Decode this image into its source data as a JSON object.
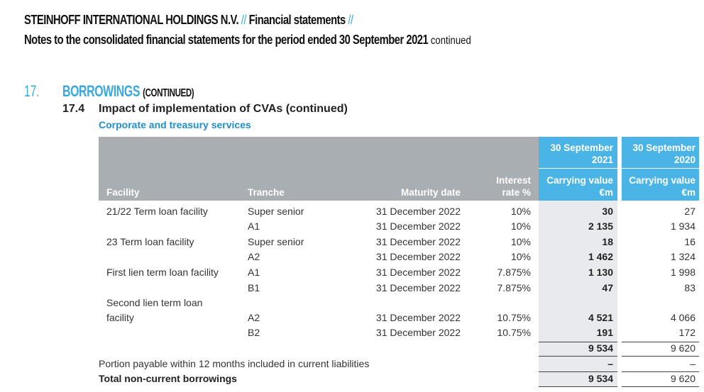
{
  "header": {
    "company": "STEINHOFF INTERNATIONAL HOLDINGS N.V.",
    "slash": "//",
    "doc": "Financial statements",
    "notes_title": "Notes to the consolidated financial statements for the period ended 30 September 2021",
    "continued": "continued"
  },
  "section": {
    "number": "17.",
    "title": "BORROWINGS",
    "title_suffix": "(CONTINUED)",
    "sub_number": "17.4",
    "sub_title": "Impact of implementation of CVAs (continued)",
    "sub_sub_title": "Corporate and treasury services"
  },
  "table": {
    "headers": {
      "facility": "Facility",
      "tranche": "Tranche",
      "maturity": "Maturity date",
      "rate_l1": "Interest",
      "rate_l2": "rate %",
      "col2021_l1": "30 September",
      "col2021_l2": "2021",
      "col2020_l1": "30 September",
      "col2020_l2": "2020",
      "cv_l1": "Carrying value",
      "cv_l2": "€m"
    },
    "rows": [
      {
        "facility": "21/22 Term loan facility",
        "tranche": "Super senior",
        "maturity": "31 December 2022",
        "rate": "10%",
        "v2021": "30",
        "v2020": "27"
      },
      {
        "facility": "",
        "tranche": "A1",
        "maturity": "31 December 2022",
        "rate": "10%",
        "v2021": "2 135",
        "v2020": "1 934"
      },
      {
        "facility": "23 Term loan facility",
        "tranche": "Super senior",
        "maturity": "31 December 2022",
        "rate": "10%",
        "v2021": "18",
        "v2020": "16"
      },
      {
        "facility": "",
        "tranche": "A2",
        "maturity": "31 December 2022",
        "rate": "10%",
        "v2021": "1 462",
        "v2020": "1 324"
      },
      {
        "facility": "First lien term loan facility",
        "tranche": "A1",
        "maturity": "31 December 2022",
        "rate": "7.875%",
        "v2021": "1 130",
        "v2020": "1 998"
      },
      {
        "facility": "",
        "tranche": "B1",
        "maturity": "31 December 2022",
        "rate": "7.875%",
        "v2021": "47",
        "v2020": "83"
      },
      {
        "facility": "Second lien term loan",
        "tranche": "",
        "maturity": "",
        "rate": "",
        "v2021": "",
        "v2020": ""
      },
      {
        "facility": "facility",
        "tranche": "A2",
        "maturity": "31 December 2022",
        "rate": "10.75%",
        "v2021": "4 521",
        "v2020": "4 066"
      },
      {
        "facility": "",
        "tranche": "B2",
        "maturity": "31 December 2022",
        "rate": "10.75%",
        "v2021": "191",
        "v2020": "172"
      }
    ],
    "subtotal": {
      "v2021": "9 534",
      "v2020": "9 620"
    },
    "current": {
      "label": "Portion payable within 12 months included in current liabilities",
      "v2021": "–",
      "v2020": "–"
    },
    "total": {
      "label": "Total non-current borrowings",
      "v2021": "9 534",
      "v2020": "9 620"
    }
  }
}
